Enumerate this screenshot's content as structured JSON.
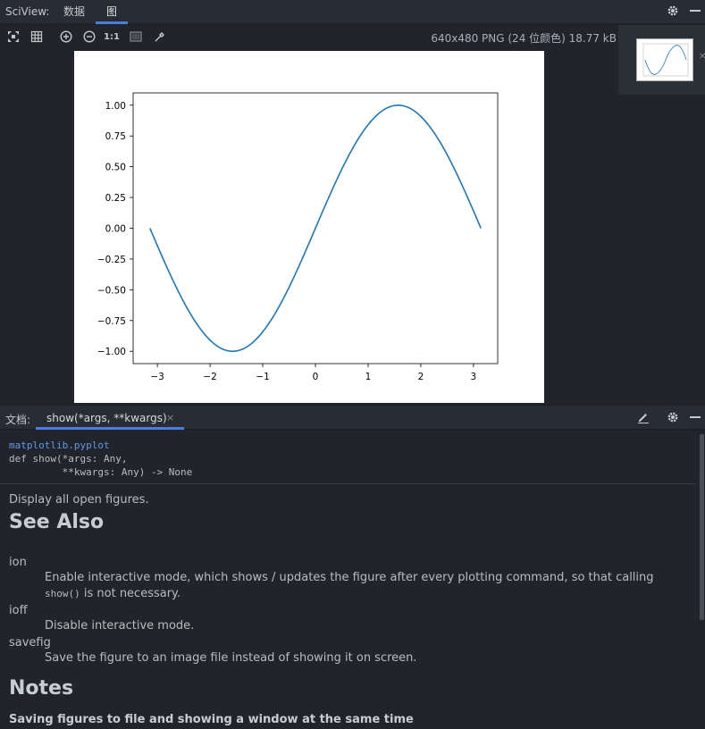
{
  "header": {
    "title": "SciView:",
    "tabs": [
      {
        "label": "数据",
        "active": false
      },
      {
        "label": "图",
        "active": true
      }
    ]
  },
  "viewer": {
    "image_info": "640x480 PNG (24 位颜色) 18.77 kB",
    "toolbar": [
      "fit-screen-icon",
      "grid-icon",
      "zoom-in-icon",
      "zoom-out-icon",
      "actual-size-icon",
      "background-icon",
      "color-picker-icon"
    ],
    "actual_size_label": "1:1"
  },
  "chart_data": {
    "type": "line",
    "function": "sin(x)",
    "x_range": [
      -3.14159,
      3.14159
    ],
    "x": [
      -3.14,
      -2.83,
      -2.51,
      -2.2,
      -1.88,
      -1.57,
      -1.26,
      -0.94,
      -0.63,
      -0.31,
      0.0,
      0.31,
      0.63,
      0.94,
      1.26,
      1.57,
      1.88,
      2.2,
      2.51,
      2.83,
      3.14
    ],
    "y": [
      0.0,
      -0.31,
      -0.59,
      -0.81,
      -0.95,
      -1.0,
      -0.95,
      -0.81,
      -0.59,
      -0.31,
      0.0,
      0.31,
      0.59,
      0.81,
      0.95,
      1.0,
      0.95,
      0.81,
      0.59,
      0.31,
      0.0
    ],
    "xticks": [
      "−3",
      "−2",
      "−1",
      "0",
      "1",
      "2",
      "3"
    ],
    "yticks": [
      "1.00",
      "0.75",
      "0.50",
      "0.25",
      "0.00",
      "−0.25",
      "−0.50",
      "−0.75",
      "−1.00"
    ],
    "xlim": [
      -3.46,
      3.46
    ],
    "ylim": [
      -1.1,
      1.1
    ],
    "line_color": "#1f77b4",
    "grid": false
  },
  "docs": {
    "panel_title": "文档:",
    "tab_label": "show(*args, **kwargs)",
    "tab_close": "×",
    "module": "matplotlib.pyplot",
    "signature_line1": "def show(*args: Any,",
    "signature_line2": "         **kwargs: Any) -> None",
    "summary": "Display all open figures.",
    "see_also_heading": "See Also",
    "entries": [
      {
        "term": "ion",
        "def_pre": "Enable interactive mode, which shows / updates the figure after every plotting command, so that calling ",
        "def_code": "show()",
        "def_post": " is not necessary."
      },
      {
        "term": "ioff",
        "def": "Disable interactive mode."
      },
      {
        "term": "savefig",
        "def": "Save the figure to an image file instead of showing it on screen."
      }
    ],
    "notes_heading": "Notes",
    "notes_subheading": "Saving figures to file and showing a window at the same time"
  },
  "colors": {
    "accent": "#4a7ede",
    "link": "#5e9ae6",
    "background": "#21252b"
  }
}
